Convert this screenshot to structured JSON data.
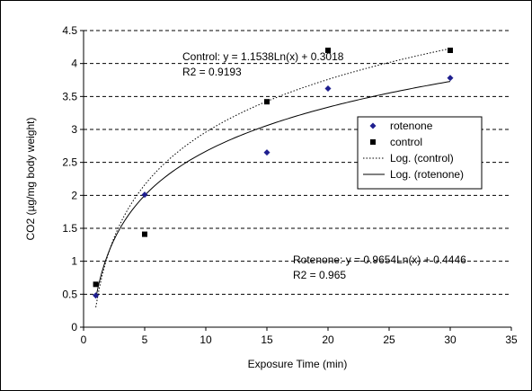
{
  "chart_data": {
    "type": "scatter",
    "xlabel": "Exposure Time (min)",
    "ylabel": "CO2 (µg/mg body weight)",
    "xlim": [
      0,
      35
    ],
    "ylim": [
      0,
      4.5
    ],
    "x_ticks": [
      0,
      5,
      10,
      15,
      20,
      25,
      30,
      35
    ],
    "y_ticks": [
      0,
      0.5,
      1,
      1.5,
      2,
      2.5,
      3,
      3.5,
      4,
      4.5
    ],
    "y_grid": true,
    "legend_position": "right",
    "series": [
      {
        "name": "rotenone",
        "marker": "diamond",
        "color": "#1f1f8f",
        "points": [
          [
            1,
            0.48
          ],
          [
            5,
            2.01
          ],
          [
            15,
            2.65
          ],
          [
            20,
            3.62
          ],
          [
            30,
            3.78
          ]
        ]
      },
      {
        "name": "control",
        "marker": "square",
        "color": "#000000",
        "points": [
          [
            1,
            0.65
          ],
          [
            5,
            1.41
          ],
          [
            15,
            3.42
          ],
          [
            20,
            4.2
          ],
          [
            30,
            4.2
          ]
        ]
      }
    ],
    "trendlines": [
      {
        "name": "Log. (control)",
        "a": 1.1538,
        "b": 0.3018,
        "style": "dotted",
        "x_range": [
          1,
          30
        ]
      },
      {
        "name": "Log. (rotenone)",
        "a": 0.9654,
        "b": 0.4446,
        "style": "solid",
        "x_range": [
          1,
          30
        ]
      }
    ],
    "annotations": [
      {
        "line1": "Control: y = 1.1538Ln(x) + 0.3018",
        "line2": "R2 = 0.9193"
      },
      {
        "line1": "Rotenone: y = 0.9654Ln(x) + 0.4446",
        "line2": "R2 = 0.965"
      }
    ],
    "legend": [
      "rotenone",
      "control",
      "Log. (control)",
      "Log. (rotenone)"
    ]
  }
}
